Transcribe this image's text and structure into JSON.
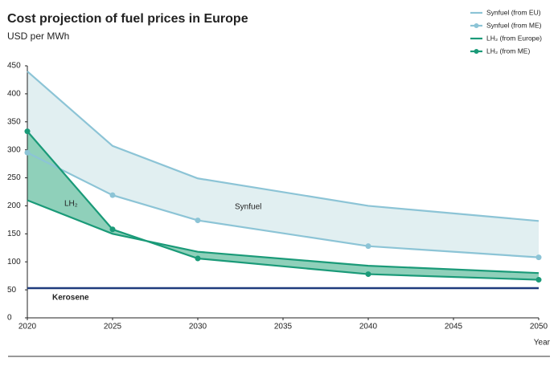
{
  "chart_data": {
    "type": "line",
    "title": "Cost projection of fuel prices in Europe",
    "y_label": "USD per MWh",
    "x_label": "Year",
    "x": [
      2020,
      2025,
      2030,
      2040,
      2050
    ],
    "series": [
      {
        "name": "Synfuel (from EU)",
        "color": "#8cc4d6",
        "markers": false,
        "values": [
          440,
          307,
          249,
          200,
          173
        ]
      },
      {
        "name": "Synfuel (from ME)",
        "color": "#8cc4d6",
        "markers": true,
        "values": [
          295,
          219,
          174,
          128,
          108
        ]
      },
      {
        "name": "LH₂ (from Europe)",
        "color": "#1a9a78",
        "markers": false,
        "values": [
          210,
          150,
          118,
          93,
          80
        ]
      },
      {
        "name": "LH₂ (from ME)",
        "color": "#1a9a78",
        "markers": true,
        "values": [
          333,
          158,
          106,
          78,
          68
        ]
      }
    ],
    "area_colors": [
      "#e1eff1",
      "#8fd0ba"
    ],
    "annotations": [
      "Synfuel",
      "LH₂"
    ],
    "kerosene": {
      "label": "Kerosene",
      "value": 53,
      "color": "#1f3b7d"
    },
    "xlim": [
      2020,
      2050
    ],
    "xticks": [
      2020,
      2025,
      2030,
      2035,
      2040,
      2045,
      2050
    ],
    "ylim": [
      0,
      450
    ],
    "yticks": [
      0,
      50,
      100,
      150,
      200,
      250,
      300,
      350,
      400,
      450
    ],
    "legend": "top-right",
    "grid": false
  }
}
